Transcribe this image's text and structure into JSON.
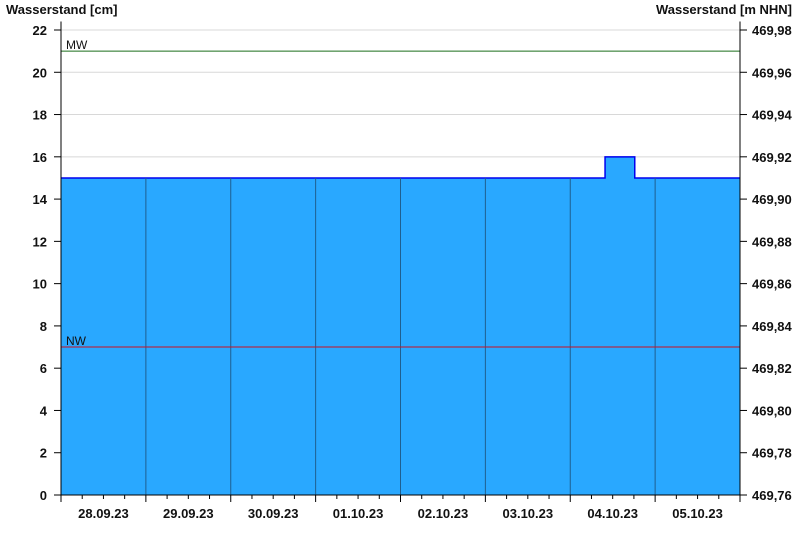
{
  "chart_data": {
    "type": "area",
    "ylabel_left": "Wasserstand [cm]",
    "ylabel_right": "Wasserstand [m NHN]",
    "ylim": [
      0,
      22.4
    ],
    "yticks_left": [
      0,
      2,
      4,
      6,
      8,
      10,
      12,
      14,
      16,
      18,
      20,
      22
    ],
    "yticks_right": [
      "469,76",
      "469,78",
      "469,80",
      "469,82",
      "469,84",
      "469,86",
      "469,88",
      "469,90",
      "469,92",
      "469,94",
      "469,96",
      "469,98"
    ],
    "x_categories": [
      "28.09.23",
      "29.09.23",
      "30.09.23",
      "01.10.23",
      "02.10.23",
      "03.10.23",
      "04.10.23",
      "05.10.23"
    ],
    "series": [
      {
        "points_day_value": [
          [
            0,
            15
          ],
          [
            6.41,
            15
          ],
          [
            6.41,
            16
          ],
          [
            6.76,
            16
          ],
          [
            6.76,
            15
          ],
          [
            8,
            15
          ]
        ]
      }
    ],
    "reference_lines": [
      {
        "label": "MW",
        "value": 21,
        "color": "#1a6e1a"
      },
      {
        "label": "NW",
        "value": 7,
        "color": "#cc1122"
      }
    ],
    "colors": {
      "fill": "#29a8ff",
      "line": "#0000ee",
      "grid": "#d8d8d8",
      "day_line": "#1f5f8f"
    },
    "grid": true
  }
}
